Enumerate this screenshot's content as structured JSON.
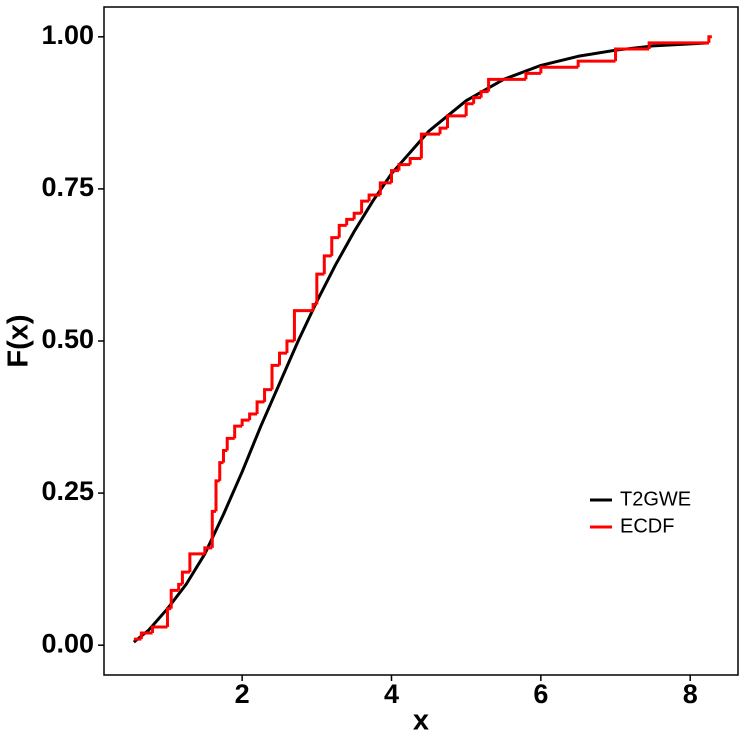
{
  "chart_data": {
    "type": "line",
    "x_label": "x",
    "y_label": "F(x)",
    "xlim": [
      0.15,
      8.64
    ],
    "ylim": [
      -0.049,
      1.049
    ],
    "xticks": [
      2,
      4,
      6,
      8
    ],
    "yticks": [
      {
        "value": 0,
        "label": "0.00"
      },
      {
        "value": 0.25,
        "label": "0.25"
      },
      {
        "value": 0.5,
        "label": "0.50"
      },
      {
        "value": 0.75,
        "label": "0.75"
      },
      {
        "value": 1,
        "label": "1.00"
      }
    ],
    "legend": "bottom-right",
    "series": [
      {
        "name": "T2GWE",
        "color": "#000000",
        "step": false,
        "x": [
          0.55,
          0.75,
          1.0,
          1.25,
          1.5,
          1.75,
          2.0,
          2.25,
          2.5,
          2.75,
          3.0,
          3.25,
          3.5,
          3.75,
          4.0,
          4.5,
          5.0,
          5.5,
          6.0,
          6.5,
          7.0,
          7.5,
          8.25
        ],
        "values": [
          0.005,
          0.025,
          0.06,
          0.1,
          0.15,
          0.215,
          0.285,
          0.36,
          0.43,
          0.5,
          0.565,
          0.625,
          0.68,
          0.73,
          0.775,
          0.845,
          0.895,
          0.93,
          0.953,
          0.968,
          0.978,
          0.985,
          0.99
        ]
      },
      {
        "name": "ECDF",
        "color": "#ff0000",
        "step": true,
        "x": [
          0.55,
          0.65,
          0.8,
          1.0,
          1.05,
          1.15,
          1.2,
          1.3,
          1.5,
          1.6,
          1.65,
          1.7,
          1.75,
          1.8,
          1.9,
          2.0,
          2.1,
          2.2,
          2.3,
          2.4,
          2.5,
          2.6,
          2.7,
          2.95,
          3.0,
          3.1,
          3.2,
          3.3,
          3.4,
          3.5,
          3.6,
          3.7,
          3.85,
          4.0,
          4.1,
          4.25,
          4.4,
          4.65,
          4.75,
          5.0,
          5.1,
          5.2,
          5.3,
          5.8,
          6.0,
          6.5,
          7.0,
          7.45,
          8.25
        ],
        "values": [
          0.01,
          0.02,
          0.03,
          0.06,
          0.09,
          0.1,
          0.12,
          0.15,
          0.16,
          0.22,
          0.27,
          0.3,
          0.32,
          0.34,
          0.36,
          0.37,
          0.38,
          0.4,
          0.42,
          0.46,
          0.48,
          0.5,
          0.55,
          0.56,
          0.61,
          0.64,
          0.67,
          0.69,
          0.7,
          0.71,
          0.73,
          0.74,
          0.76,
          0.78,
          0.79,
          0.8,
          0.84,
          0.85,
          0.87,
          0.89,
          0.9,
          0.91,
          0.93,
          0.94,
          0.95,
          0.96,
          0.98,
          0.99,
          1.0
        ]
      }
    ]
  }
}
